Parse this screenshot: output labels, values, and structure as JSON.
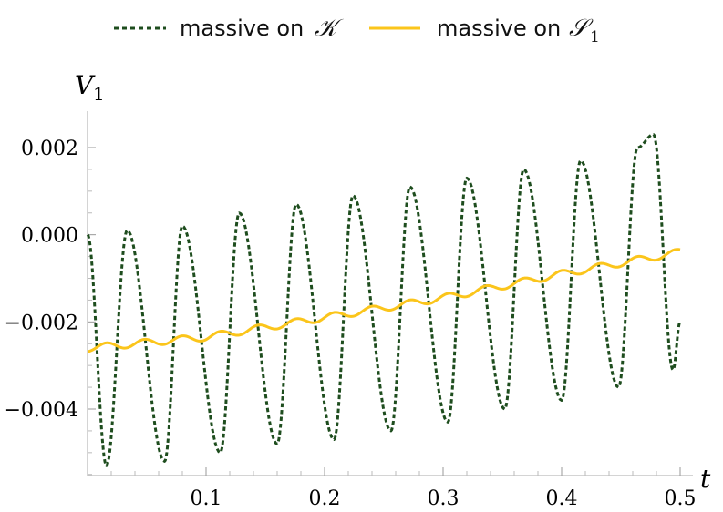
{
  "chart_data": {
    "type": "line",
    "title": "",
    "xlabel": "t",
    "ylabel": "V",
    "ylabel_sub": "1",
    "xlim": [
      0,
      0.5
    ],
    "ylim": [
      -0.0054,
      0.0028
    ],
    "xticks": [
      0.1,
      0.2,
      0.3,
      0.4,
      0.5
    ],
    "xtick_labels": [
      "0.1",
      "0.2",
      "0.3",
      "0.4",
      "0.5"
    ],
    "yticks": [
      0.002,
      0.0,
      -0.002,
      -0.004
    ],
    "ytick_labels": [
      "0.002",
      "0.000",
      "−0.002",
      "−0.004"
    ],
    "grid": false,
    "legend_position": "top",
    "series": [
      {
        "name": "massive on 𝒦",
        "legend_prefix": "massive on",
        "legend_symbol": "𝒦",
        "legend_sub": "",
        "style": "dashed",
        "color": "#1e4d1e",
        "x": [
          0.0,
          0.016,
          0.0335,
          0.065,
          0.08,
          0.112,
          0.128,
          0.16,
          0.176,
          0.208,
          0.224,
          0.256,
          0.272,
          0.304,
          0.32,
          0.352,
          0.368,
          0.4,
          0.416,
          0.448,
          0.464,
          0.4775,
          0.494,
          0.5
        ],
        "values": [
          0.0,
          -0.0053,
          0.0001,
          -0.0052,
          0.0002,
          -0.005,
          0.0005,
          -0.0048,
          0.0007,
          -0.0047,
          0.0009,
          -0.0045,
          0.0011,
          -0.0043,
          0.0013,
          -0.004,
          0.0015,
          -0.0038,
          0.0017,
          -0.0035,
          0.002,
          0.0023,
          -0.0031,
          -0.002
        ]
      },
      {
        "name": "massive on 𝒮₁",
        "legend_prefix": "massive on",
        "legend_symbol": "𝒮",
        "legend_sub": "1",
        "style": "solid",
        "color": "#fbc51b",
        "x": [
          0.0,
          0.1,
          0.2,
          0.3,
          0.4,
          0.5
        ],
        "values": [
          -0.0026,
          -0.00235,
          -0.0019,
          -0.00145,
          -0.0009,
          -0.0004
        ]
      }
    ]
  }
}
